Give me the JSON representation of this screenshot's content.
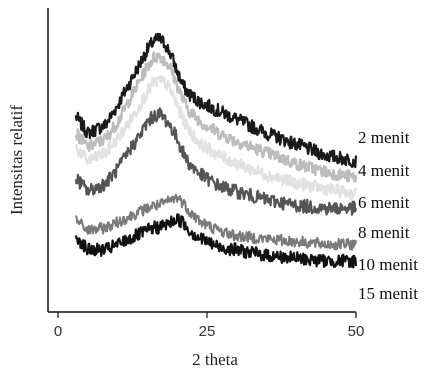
{
  "chart_data": {
    "type": "line",
    "title": "",
    "xlabel": "2 theta",
    "ylabel": "Intensitas relatif",
    "xlim": [
      0,
      50
    ],
    "x_ticks": [
      "0",
      "25",
      "50"
    ],
    "y_ticks": [],
    "grid": false,
    "legend": "labels at right end of each curve",
    "x": [
      3,
      5,
      8,
      10,
      12,
      14,
      15,
      16,
      17,
      18,
      19,
      20,
      21,
      22,
      24,
      27,
      30,
      35,
      40,
      45,
      50
    ],
    "series": [
      {
        "name": "2 menit",
        "color": "#1a1a1a",
        "values": [
          66,
          60,
          63,
          70,
          78,
          86,
          90,
          93,
          94,
          92,
          88,
          82,
          77,
          74,
          71,
          68,
          65,
          60,
          56,
          52,
          50
        ]
      },
      {
        "name": "4 menit",
        "color": "#bdbdbd",
        "values": [
          60,
          55,
          58,
          64,
          72,
          80,
          84,
          87,
          88,
          86,
          83,
          77,
          72,
          68,
          64,
          60,
          57,
          53,
          49,
          46,
          44
        ]
      },
      {
        "name": "6 menit",
        "color": "#e2e2e2",
        "values": [
          55,
          50,
          53,
          58,
          64,
          71,
          75,
          78,
          79,
          78,
          75,
          70,
          65,
          61,
          56,
          52,
          49,
          45,
          42,
          40,
          38
        ]
      },
      {
        "name": "8 menit",
        "color": "#555555",
        "values": [
          44,
          39,
          42,
          47,
          54,
          60,
          64,
          66,
          67,
          65,
          62,
          58,
          53,
          49,
          45,
          41,
          39,
          36,
          34,
          33,
          33
        ]
      },
      {
        "name": "10 menit",
        "color": "#7a7a7a",
        "values": [
          29,
          25,
          26,
          28,
          30,
          32,
          33,
          34,
          34,
          35,
          36,
          37,
          35,
          32,
          28,
          25,
          23,
          22,
          21,
          20,
          20
        ]
      },
      {
        "name": "15 menit",
        "color": "#111111",
        "values": [
          23,
          18,
          18,
          20,
          22,
          24,
          25,
          26,
          26,
          27,
          28,
          29,
          28,
          25,
          22,
          19,
          18,
          16,
          15,
          14,
          14
        ]
      }
    ]
  }
}
